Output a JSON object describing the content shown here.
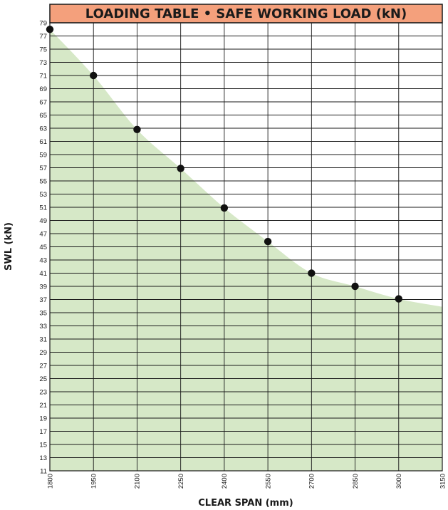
{
  "colors": {
    "title_bg": "#f4a07c",
    "area_fill": "#d6e8c7",
    "grid": "#1a1a1a",
    "point": "#111111"
  },
  "chart_data": {
    "type": "area",
    "title": "LOADING TABLE • SAFE WORKING LOAD (kN)",
    "xlabel": "CLEAR SPAN (mm)",
    "ylabel": "SWL (kN)",
    "xlim": [
      1800,
      3150
    ],
    "ylim": [
      11,
      79
    ],
    "x_ticks": [
      1800,
      1950,
      2100,
      2250,
      2400,
      2550,
      2700,
      2850,
      3000,
      3150
    ],
    "y_ticks": [
      11,
      13,
      15,
      17,
      19,
      21,
      23,
      25,
      27,
      29,
      31,
      33,
      35,
      37,
      39,
      41,
      43,
      45,
      47,
      49,
      51,
      53,
      55,
      57,
      59,
      61,
      63,
      65,
      67,
      69,
      71,
      73,
      75,
      77,
      79
    ],
    "grid": true,
    "points": [
      {
        "x": 1800,
        "y": 78
      },
      {
        "x": 1950,
        "y": 71
      },
      {
        "x": 2100,
        "y": 62.8
      },
      {
        "x": 2250,
        "y": 56.9
      },
      {
        "x": 2400,
        "y": 50.9
      },
      {
        "x": 2550,
        "y": 45.8
      },
      {
        "x": 2700,
        "y": 41
      },
      {
        "x": 2850,
        "y": 39
      },
      {
        "x": 3000,
        "y": 37.1
      }
    ],
    "curve_end": {
      "x": 3150,
      "y": 35.9
    }
  }
}
